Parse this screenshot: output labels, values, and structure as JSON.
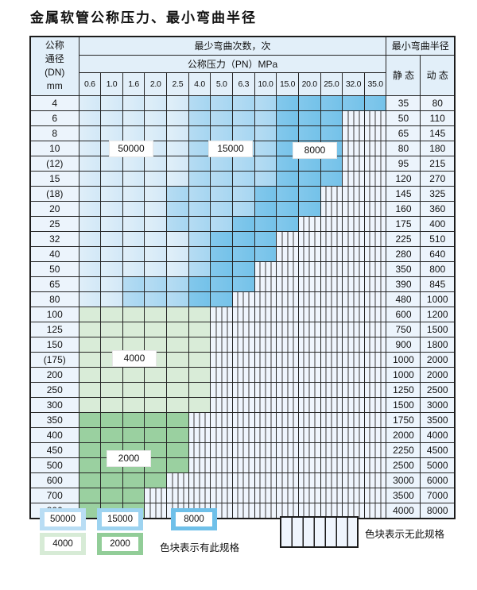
{
  "title": "金属软管公称压力、最小弯曲半径",
  "table": {
    "dn_header_lines": [
      "公称",
      "通径",
      "(DN)",
      "mm"
    ],
    "bend_cycles_header": "最少弯曲次数，次",
    "pressure_header": "公称压力（PN）MPa",
    "pressure_columns": [
      "0.6",
      "1.0",
      "1.6",
      "2.0",
      "2.5",
      "4.0",
      "5.0",
      "6.3",
      "10.0",
      "15.0",
      "20.0",
      "25.0",
      "32.0",
      "35.0"
    ],
    "radius_header": "最小弯曲半径",
    "static_header": "静 态",
    "dynamic_header": "动 态",
    "rows": [
      {
        "dn": "4",
        "static": "35",
        "dynamic": "80",
        "cells": [
          1,
          1,
          1,
          1,
          1,
          2,
          2,
          2,
          2,
          3,
          3,
          3,
          3,
          3
        ]
      },
      {
        "dn": "6",
        "static": "50",
        "dynamic": "110",
        "cells": [
          1,
          1,
          1,
          1,
          1,
          2,
          2,
          2,
          2,
          3,
          3,
          3,
          0,
          0
        ]
      },
      {
        "dn": "8",
        "static": "65",
        "dynamic": "145",
        "cells": [
          1,
          1,
          1,
          1,
          1,
          2,
          2,
          2,
          2,
          3,
          3,
          3,
          0,
          0
        ]
      },
      {
        "dn": "10",
        "static": "80",
        "dynamic": "180",
        "cells": [
          1,
          1,
          1,
          1,
          1,
          2,
          2,
          2,
          2,
          3,
          3,
          3,
          0,
          0
        ]
      },
      {
        "dn": "(12)",
        "static": "95",
        "dynamic": "215",
        "cells": [
          1,
          1,
          1,
          1,
          1,
          2,
          2,
          2,
          2,
          3,
          3,
          3,
          0,
          0
        ]
      },
      {
        "dn": "15",
        "static": "120",
        "dynamic": "270",
        "cells": [
          1,
          1,
          1,
          1,
          1,
          2,
          2,
          2,
          2,
          3,
          3,
          3,
          0,
          0
        ]
      },
      {
        "dn": "(18)",
        "static": "145",
        "dynamic": "325",
        "cells": [
          1,
          1,
          1,
          1,
          2,
          2,
          2,
          2,
          3,
          3,
          3,
          0,
          0,
          0
        ]
      },
      {
        "dn": "20",
        "static": "160",
        "dynamic": "360",
        "cells": [
          1,
          1,
          1,
          1,
          2,
          2,
          2,
          2,
          3,
          3,
          3,
          0,
          0,
          0
        ]
      },
      {
        "dn": "25",
        "static": "175",
        "dynamic": "400",
        "cells": [
          1,
          1,
          1,
          1,
          2,
          2,
          2,
          3,
          3,
          3,
          0,
          0,
          0,
          0
        ]
      },
      {
        "dn": "32",
        "static": "225",
        "dynamic": "510",
        "cells": [
          1,
          1,
          1,
          1,
          1,
          2,
          3,
          3,
          3,
          0,
          0,
          0,
          0,
          0
        ]
      },
      {
        "dn": "40",
        "static": "280",
        "dynamic": "640",
        "cells": [
          1,
          1,
          1,
          1,
          1,
          2,
          3,
          3,
          3,
          0,
          0,
          0,
          0,
          0
        ]
      },
      {
        "dn": "50",
        "static": "350",
        "dynamic": "800",
        "cells": [
          1,
          1,
          1,
          1,
          1,
          2,
          3,
          3,
          0,
          0,
          0,
          0,
          0,
          0
        ]
      },
      {
        "dn": "65",
        "static": "390",
        "dynamic": "845",
        "cells": [
          1,
          1,
          2,
          2,
          2,
          3,
          3,
          3,
          0,
          0,
          0,
          0,
          0,
          0
        ]
      },
      {
        "dn": "80",
        "static": "480",
        "dynamic": "1000",
        "cells": [
          1,
          1,
          2,
          2,
          2,
          3,
          3,
          0,
          0,
          0,
          0,
          0,
          0,
          0
        ]
      },
      {
        "dn": "100",
        "static": "600",
        "dynamic": "1200",
        "cells": [
          4,
          4,
          4,
          4,
          4,
          4,
          0,
          0,
          0,
          0,
          0,
          0,
          0,
          0
        ]
      },
      {
        "dn": "125",
        "static": "750",
        "dynamic": "1500",
        "cells": [
          4,
          4,
          4,
          4,
          4,
          4,
          0,
          0,
          0,
          0,
          0,
          0,
          0,
          0
        ]
      },
      {
        "dn": "150",
        "static": "900",
        "dynamic": "1800",
        "cells": [
          4,
          4,
          4,
          4,
          4,
          4,
          0,
          0,
          0,
          0,
          0,
          0,
          0,
          0
        ]
      },
      {
        "dn": "(175)",
        "static": "1000",
        "dynamic": "2000",
        "cells": [
          4,
          4,
          4,
          4,
          4,
          4,
          0,
          0,
          0,
          0,
          0,
          0,
          0,
          0
        ]
      },
      {
        "dn": "200",
        "static": "1000",
        "dynamic": "2000",
        "cells": [
          4,
          4,
          4,
          4,
          4,
          4,
          0,
          0,
          0,
          0,
          0,
          0,
          0,
          0
        ]
      },
      {
        "dn": "250",
        "static": "1250",
        "dynamic": "2500",
        "cells": [
          4,
          4,
          4,
          4,
          4,
          4,
          0,
          0,
          0,
          0,
          0,
          0,
          0,
          0
        ]
      },
      {
        "dn": "300",
        "static": "1500",
        "dynamic": "3000",
        "cells": [
          4,
          4,
          4,
          4,
          4,
          4,
          0,
          0,
          0,
          0,
          0,
          0,
          0,
          0
        ]
      },
      {
        "dn": "350",
        "static": "1750",
        "dynamic": "3500",
        "cells": [
          5,
          5,
          5,
          5,
          5,
          0,
          0,
          0,
          0,
          0,
          0,
          0,
          0,
          0
        ]
      },
      {
        "dn": "400",
        "static": "2000",
        "dynamic": "4000",
        "cells": [
          5,
          5,
          5,
          5,
          5,
          0,
          0,
          0,
          0,
          0,
          0,
          0,
          0,
          0
        ]
      },
      {
        "dn": "450",
        "static": "2250",
        "dynamic": "4500",
        "cells": [
          5,
          5,
          5,
          5,
          5,
          0,
          0,
          0,
          0,
          0,
          0,
          0,
          0,
          0
        ]
      },
      {
        "dn": "500",
        "static": "2500",
        "dynamic": "5000",
        "cells": [
          5,
          5,
          5,
          5,
          5,
          0,
          0,
          0,
          0,
          0,
          0,
          0,
          0,
          0
        ]
      },
      {
        "dn": "600",
        "static": "3000",
        "dynamic": "6000",
        "cells": [
          5,
          5,
          5,
          5,
          0,
          0,
          0,
          0,
          0,
          0,
          0,
          0,
          0,
          0
        ]
      },
      {
        "dn": "700",
        "static": "3500",
        "dynamic": "7000",
        "cells": [
          5,
          5,
          5,
          0,
          0,
          0,
          0,
          0,
          0,
          0,
          0,
          0,
          0,
          0
        ]
      },
      {
        "dn": "800",
        "static": "4000",
        "dynamic": "8000",
        "cells": [
          5,
          5,
          5,
          0,
          0,
          0,
          0,
          0,
          0,
          0,
          0,
          0,
          0,
          0
        ]
      }
    ]
  },
  "cell_categories": {
    "0": "no-spec-hatched",
    "1": "50000-cycles",
    "2": "15000-cycles",
    "3": "8000-cycles",
    "4": "4000-cycles",
    "5": "2000-cycles"
  },
  "cycle_labels": [
    {
      "text": "50000"
    },
    {
      "text": "15000"
    },
    {
      "text": "8000"
    },
    {
      "text": "4000"
    },
    {
      "text": "2000"
    }
  ],
  "legend": {
    "swatches": [
      {
        "value": "50000",
        "color": "#b9ddf4"
      },
      {
        "value": "15000",
        "color": "#9dd3f0"
      },
      {
        "value": "8000",
        "color": "#6fc0e9"
      },
      {
        "value": "4000",
        "color": "#d7ebd6"
      },
      {
        "value": "2000",
        "color": "#92cd98"
      }
    ],
    "has_spec_note": "色块表示有此规格",
    "no_spec_note": "色块表示无此规格"
  },
  "colors": {
    "blue_50000": "#d2e8f7",
    "blue_15000": "#a6d6f1",
    "blue_8000": "#74c2e9",
    "green_4000": "#d9ecd8",
    "green_2000": "#9ad0a0",
    "hatch_bg": "#eff5fd",
    "header_bg": "#e2eff9",
    "side_bg": "#ecf4fc",
    "border": "#262626"
  }
}
